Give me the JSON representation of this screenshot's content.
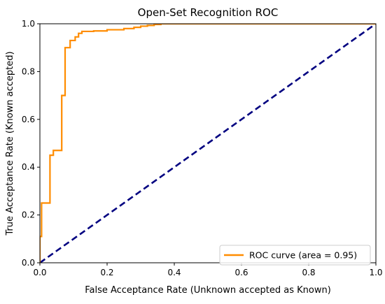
{
  "chart_data": {
    "type": "line",
    "title": "Open-Set Recognition ROC",
    "xlabel": "False Acceptance Rate (Unknown accepted as Known)",
    "ylabel": "True Acceptance Rate (Known accepted)",
    "xlim": [
      0.0,
      1.0
    ],
    "ylim": [
      0.0,
      1.0
    ],
    "xticks": [
      0.0,
      0.2,
      0.4,
      0.6,
      0.8,
      1.0
    ],
    "yticks": [
      0.0,
      0.2,
      0.4,
      0.6,
      0.8,
      1.0
    ],
    "xtick_labels": [
      "0.0",
      "0.2",
      "0.4",
      "0.6",
      "0.8",
      "1.0"
    ],
    "ytick_labels": [
      "0.0",
      "0.2",
      "0.4",
      "0.6",
      "0.8",
      "1.0"
    ],
    "grid": false,
    "legend_position": "lower-right",
    "series": [
      {
        "name": "ROC curve (area = 0.95)",
        "color": "#ff8c00",
        "style": "solid",
        "x": [
          0.0,
          0.0,
          0.005,
          0.005,
          0.015,
          0.015,
          0.03,
          0.03,
          0.04,
          0.04,
          0.055,
          0.055,
          0.065,
          0.065,
          0.075,
          0.075,
          0.09,
          0.09,
          0.105,
          0.105,
          0.115,
          0.115,
          0.125,
          0.125,
          0.16,
          0.16,
          0.2,
          0.2,
          0.25,
          0.25,
          0.28,
          0.28,
          0.3,
          0.3,
          0.32,
          0.32,
          0.34,
          0.34,
          0.36,
          0.36,
          1.0
        ],
        "y": [
          0.0,
          0.11,
          0.11,
          0.25,
          0.25,
          0.25,
          0.25,
          0.45,
          0.45,
          0.47,
          0.47,
          0.47,
          0.47,
          0.7,
          0.7,
          0.9,
          0.9,
          0.93,
          0.93,
          0.945,
          0.945,
          0.96,
          0.96,
          0.968,
          0.968,
          0.97,
          0.97,
          0.975,
          0.975,
          0.98,
          0.98,
          0.985,
          0.985,
          0.99,
          0.99,
          0.993,
          0.993,
          0.997,
          0.997,
          1.0,
          1.0
        ]
      },
      {
        "name": "",
        "color": "#000080",
        "style": "dashed",
        "x": [
          0.0,
          1.0
        ],
        "y": [
          0.0,
          1.0
        ]
      }
    ]
  }
}
